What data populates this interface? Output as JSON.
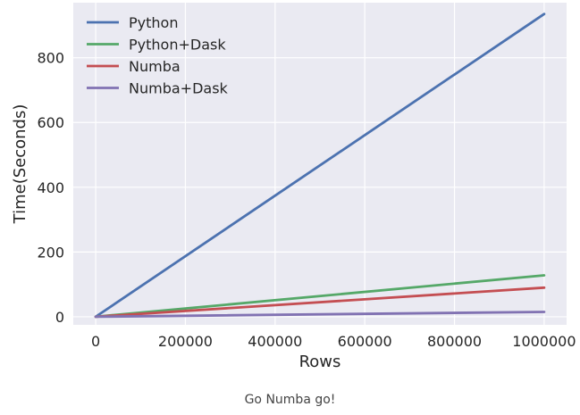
{
  "caption": "Go Numba go!",
  "chart_data": {
    "type": "line",
    "xlabel": "Rows",
    "ylabel": "Time(Seconds)",
    "x": [
      0,
      1000000
    ],
    "xlim": [
      -50000,
      1050000
    ],
    "ylim": [
      -25,
      970
    ],
    "xticks": [
      0,
      200000,
      400000,
      600000,
      800000,
      1000000
    ],
    "xtick_labels": [
      "0",
      "200000",
      "400000",
      "600000",
      "800000",
      "1000000"
    ],
    "yticks": [
      0,
      200,
      400,
      600,
      800
    ],
    "ytick_labels": [
      "0",
      "200",
      "400",
      "600",
      "800"
    ],
    "grid": true,
    "legend_position": "top-left",
    "series": [
      {
        "name": "Python",
        "color": "#4c72b0",
        "values": [
          0,
          935
        ]
      },
      {
        "name": "Python+Dask",
        "color": "#55a868",
        "values": [
          0,
          128
        ]
      },
      {
        "name": "Numba",
        "color": "#c44e52",
        "values": [
          0,
          90
        ]
      },
      {
        "name": "Numba+Dask",
        "color": "#8172b2",
        "values": [
          0,
          15
        ]
      }
    ]
  }
}
